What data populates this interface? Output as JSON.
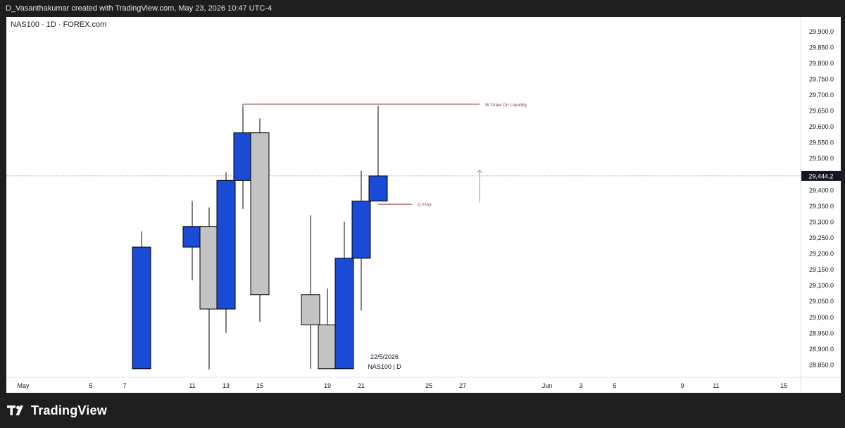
{
  "header": {
    "caption": "D_Vasanthakumar created with TradingView.com, May 23, 2026 10:47 UTC-4",
    "symbol": "NAS100 · 1D · FOREX.com"
  },
  "footer": {
    "logo_text": "TradingView",
    "logo_icon": "tradingview-logo-icon"
  },
  "chart_data": {
    "type": "candlestick",
    "title": "",
    "y_axis": {
      "side": "right",
      "range": [
        28810,
        29945
      ],
      "ticks": [
        29900,
        29850,
        29800,
        29750,
        29700,
        29650,
        29600,
        29550,
        29500,
        29450,
        29400,
        29350,
        29300,
        29250,
        29200,
        29150,
        29100,
        29050,
        29000,
        28950,
        28900,
        28850
      ],
      "tick_labels": [
        "29,900.0",
        "29,850.0",
        "29,800.0",
        "29,750.0",
        "29,700.0",
        "29,650.0",
        "29,600.0",
        "29,550.0",
        "29,500.0",
        "29,450.0",
        "29,400.0",
        "29,350.0",
        "29,300.0",
        "29,250.0",
        "29,200.0",
        "29,150.0",
        "29,100.0",
        "29,050.0",
        "29,000.0",
        "28,950.0",
        "28,900.0",
        "28,850.0"
      ]
    },
    "x_axis": {
      "range": [
        "2026-04-30",
        "2026-06-16"
      ],
      "ticks": [
        "2026-05-01",
        "2026-05-05",
        "2026-05-07",
        "2026-05-11",
        "2026-05-13",
        "2026-05-15",
        "2026-05-19",
        "2026-05-21",
        "2026-05-25",
        "2026-05-27",
        "2026-06-01",
        "2026-06-03",
        "2026-06-05",
        "2026-06-09",
        "2026-06-11",
        "2026-06-15"
      ],
      "tick_labels": [
        "May",
        "5",
        "7",
        "11",
        "13",
        "15",
        "19",
        "21",
        "25",
        "27",
        "Jun",
        "3",
        "5",
        "9",
        "11",
        "15"
      ]
    },
    "candles": [
      {
        "date": "2026-05-08",
        "open": 28837,
        "high": 29270,
        "low": 28837,
        "close": 29220,
        "color": "blue"
      },
      {
        "date": "2026-05-11",
        "open": 29220,
        "high": 29365,
        "low": 29115,
        "close": 29285,
        "color": "blue"
      },
      {
        "date": "2026-05-12",
        "open": 29285,
        "high": 29345,
        "low": 28835,
        "close": 29025,
        "color": "gray"
      },
      {
        "date": "2026-05-13",
        "open": 29025,
        "high": 29455,
        "low": 28950,
        "close": 29430,
        "color": "blue"
      },
      {
        "date": "2026-05-14",
        "open": 29430,
        "high": 29670,
        "low": 29340,
        "close": 29580,
        "color": "blue"
      },
      {
        "date": "2026-05-15",
        "open": 29580,
        "high": 29625,
        "low": 28985,
        "close": 29070,
        "color": "gray"
      },
      {
        "date": "2026-05-18",
        "open": 29070,
        "high": 29320,
        "low": 28837,
        "close": 28975,
        "color": "gray"
      },
      {
        "date": "2026-05-19",
        "open": 28975,
        "high": 29090,
        "low": 28837,
        "close": 28837,
        "color": "gray"
      },
      {
        "date": "2026-05-20",
        "open": 28837,
        "high": 29300,
        "low": 28837,
        "close": 29185,
        "color": "blue"
      },
      {
        "date": "2026-05-21",
        "open": 29185,
        "high": 29460,
        "low": 29020,
        "close": 29365,
        "color": "blue"
      },
      {
        "date": "2026-05-22",
        "open": 29365,
        "high": 29665,
        "low": 29365,
        "close": 29444.2,
        "color": "blue"
      }
    ],
    "current_price": {
      "value": 29444.2,
      "label": "29,444.2"
    },
    "annotations": [
      {
        "type": "hline",
        "label": "W Draw On Liquidity",
        "price": 29670,
        "from": "2026-05-14",
        "to": "2026-05-28",
        "color": "#9c3b3b"
      },
      {
        "type": "hline",
        "label": "D FVG",
        "price": 29355,
        "from": "2026-05-22",
        "to": "2026-05-24",
        "color": "#9c3b3b"
      },
      {
        "type": "arrow_up",
        "date": "2026-05-28",
        "from_price": 29360,
        "to_price": 29462,
        "color": "#9a9a9a"
      }
    ],
    "hover_label": {
      "date_text": "22/5/2026",
      "sub_text": "NAS100 | D"
    },
    "colors": {
      "blue": "#1a4bd6",
      "gray": "#c4c4c4",
      "border": "#000000",
      "annotation": "#9c3b3b"
    }
  }
}
